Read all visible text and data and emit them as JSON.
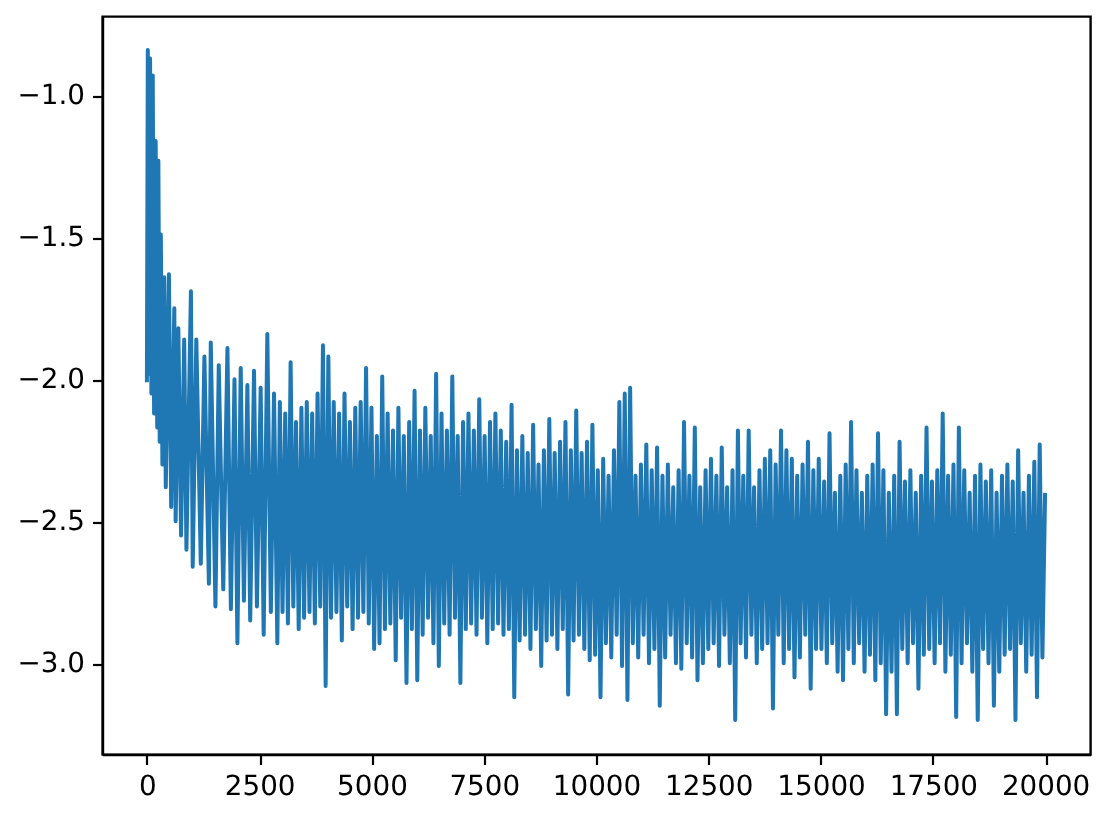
{
  "chart_data": {
    "type": "line",
    "x": [
      0,
      20,
      45,
      70,
      100,
      130,
      160,
      195,
      230,
      255,
      285,
      310,
      345,
      385,
      420,
      490,
      540,
      610,
      640,
      700,
      760,
      830,
      880,
      980,
      1020,
      1100,
      1200,
      1280,
      1380,
      1422,
      1526,
      1600,
      1700,
      1793,
      1870,
      1950,
      2015,
      2089,
      2160,
      2237,
      2300,
      2385,
      2450,
      2533,
      2600,
      2681,
      2760,
      2830,
      2904,
      2960,
      3020,
      3080,
      3140,
      3200,
      3260,
      3320,
      3380,
      3440,
      3500,
      3560,
      3620,
      3680,
      3740,
      3800,
      3860,
      3920,
      3980,
      4040,
      4100,
      4160,
      4220,
      4280,
      4340,
      4400,
      4460,
      4520,
      4580,
      4640,
      4700,
      4760,
      4820,
      4880,
      4940,
      5000,
      5060,
      5120,
      5180,
      5240,
      5300,
      5360,
      5420,
      5480,
      5540,
      5600,
      5660,
      5720,
      5780,
      5840,
      5900,
      5960,
      6020,
      6080,
      6140,
      6200,
      6260,
      6320,
      6380,
      6440,
      6500,
      6560,
      6620,
      6680,
      6740,
      6800,
      6860,
      6920,
      6980,
      7040,
      7100,
      7160,
      7220,
      7280,
      7340,
      7400,
      7460,
      7520,
      7580,
      7640,
      7700,
      7760,
      7820,
      7880,
      7940,
      8000,
      8060,
      8120,
      8180,
      8240,
      8300,
      8360,
      8420,
      8480,
      8540,
      8600,
      8660,
      8720,
      8780,
      8840,
      8900,
      8960,
      9020,
      9080,
      9140,
      9200,
      9260,
      9320,
      9380,
      9440,
      9500,
      9560,
      9620,
      9680,
      9740,
      9800,
      9860,
      9920,
      9980,
      10040,
      10100,
      10160,
      10220,
      10280,
      10340,
      10400,
      10460,
      10520,
      10580,
      10640,
      10700,
      10760,
      10820,
      10880,
      10940,
      11000,
      11060,
      11120,
      11180,
      11240,
      11300,
      11360,
      11420,
      11480,
      11540,
      11600,
      11660,
      11720,
      11780,
      11840,
      11900,
      11960,
      12020,
      12080,
      12140,
      12200,
      12260,
      12320,
      12380,
      12440,
      12500,
      12560,
      12620,
      12680,
      12740,
      12800,
      12860,
      12920,
      12980,
      13040,
      13100,
      13160,
      13220,
      13280,
      13340,
      13400,
      13460,
      13520,
      13580,
      13640,
      13700,
      13760,
      13820,
      13880,
      13940,
      14000,
      14060,
      14120,
      14180,
      14240,
      14300,
      14360,
      14420,
      14480,
      14540,
      14600,
      14660,
      14720,
      14780,
      14840,
      14900,
      14960,
      15020,
      15080,
      15140,
      15200,
      15260,
      15320,
      15380,
      15440,
      15500,
      15560,
      15620,
      15680,
      15740,
      15800,
      15860,
      15920,
      15980,
      16040,
      16100,
      16160,
      16220,
      16280,
      16340,
      16400,
      16460,
      16520,
      16580,
      16640,
      16700,
      16760,
      16820,
      16880,
      16940,
      17000,
      17060,
      17120,
      17180,
      17240,
      17300,
      17360,
      17420,
      17480,
      17540,
      17600,
      17660,
      17720,
      17780,
      17840,
      17900,
      17960,
      18020,
      18080,
      18140,
      18200,
      18260,
      18320,
      18380,
      18440,
      18500,
      18560,
      18620,
      18680,
      18740,
      18800,
      18860,
      18920,
      18980,
      19040,
      19100,
      19160,
      19220,
      19280,
      19340,
      19400,
      19460,
      19520,
      19580,
      19640,
      19700,
      19760,
      19820,
      19880,
      19940,
      20000
    ],
    "series": [
      {
        "color": "#1f77b4",
        "values": [
          -2.01,
          -0.84,
          -1.98,
          -0.87,
          -2.05,
          -0.93,
          -2.12,
          -1.16,
          -2.17,
          -1.23,
          -2.22,
          -1.49,
          -2.3,
          -1.64,
          -2.38,
          -1.63,
          -2.45,
          -1.75,
          -2.5,
          -1.82,
          -2.55,
          -1.86,
          -2.6,
          -1.69,
          -2.66,
          -1.86,
          -2.65,
          -1.92,
          -2.72,
          -1.87,
          -2.8,
          -1.95,
          -2.74,
          -1.89,
          -2.81,
          -2.0,
          -2.93,
          -1.96,
          -2.78,
          -2.02,
          -2.85,
          -1.97,
          -2.8,
          -2.03,
          -2.9,
          -1.84,
          -2.82,
          -2.05,
          -2.93,
          -2.08,
          -2.82,
          -2.12,
          -2.86,
          -1.94,
          -2.8,
          -2.15,
          -2.88,
          -2.1,
          -2.84,
          -2.08,
          -2.82,
          -2.12,
          -2.86,
          -2.05,
          -2.8,
          -1.88,
          -3.08,
          -1.92,
          -2.84,
          -2.08,
          -2.82,
          -2.12,
          -2.92,
          -2.05,
          -2.8,
          -2.15,
          -2.88,
          -2.1,
          -2.84,
          -2.08,
          -2.82,
          -1.96,
          -2.86,
          -2.1,
          -2.95,
          -2.2,
          -2.93,
          -1.99,
          -2.88,
          -2.12,
          -2.86,
          -2.18,
          -2.99,
          -2.1,
          -2.84,
          -2.2,
          -3.07,
          -2.15,
          -2.88,
          -2.04,
          -3.06,
          -2.18,
          -2.9,
          -2.1,
          -2.84,
          -2.2,
          -2.93,
          -1.98,
          -3.01,
          -2.12,
          -2.86,
          -2.18,
          -2.9,
          -1.99,
          -2.84,
          -2.2,
          -3.07,
          -2.15,
          -2.88,
          -2.12,
          -2.86,
          -2.18,
          -2.9,
          -2.07,
          -2.84,
          -2.2,
          -2.93,
          -2.15,
          -2.88,
          -2.12,
          -2.86,
          -2.18,
          -2.9,
          -2.22,
          -2.88,
          -2.09,
          -3.12,
          -2.25,
          -2.92,
          -2.2,
          -2.9,
          -2.26,
          -2.95,
          -2.16,
          -2.88,
          -2.3,
          -3.01,
          -2.25,
          -2.92,
          -2.14,
          -2.9,
          -2.26,
          -2.95,
          -2.22,
          -2.88,
          -2.15,
          -3.11,
          -2.25,
          -2.92,
          -2.11,
          -2.9,
          -2.26,
          -2.95,
          -2.22,
          -2.99,
          -2.16,
          -2.97,
          -2.32,
          -3.12,
          -2.28,
          -2.93,
          -2.34,
          -2.98,
          -2.25,
          -2.9,
          -2.08,
          -3.01,
          -2.05,
          -3.13,
          -2.03,
          -2.93,
          -2.34,
          -2.98,
          -2.3,
          -2.9,
          -2.23,
          -3.0,
          -2.32,
          -2.95,
          -2.24,
          -3.15,
          -2.34,
          -2.98,
          -2.3,
          -2.9,
          -2.38,
          -3.0,
          -2.32,
          -3.02,
          -2.15,
          -2.93,
          -2.34,
          -2.98,
          -2.17,
          -3.06,
          -2.38,
          -3.0,
          -2.32,
          -2.95,
          -2.28,
          -2.93,
          -2.34,
          -3.01,
          -2.24,
          -2.9,
          -2.38,
          -3.0,
          -2.32,
          -3.2,
          -2.18,
          -2.93,
          -2.34,
          -2.98,
          -2.18,
          -2.9,
          -2.38,
          -3.0,
          -2.32,
          -2.95,
          -2.28,
          -2.93,
          -2.25,
          -3.16,
          -2.3,
          -2.9,
          -2.18,
          -3.0,
          -2.25,
          -2.95,
          -2.28,
          -3.05,
          -2.34,
          -2.98,
          -2.3,
          -2.9,
          -2.22,
          -3.09,
          -2.32,
          -2.95,
          -2.28,
          -2.95,
          -2.36,
          -3.0,
          -2.19,
          -2.93,
          -2.4,
          -3.03,
          -2.34,
          -3.06,
          -2.3,
          -2.95,
          -2.15,
          -3.0,
          -2.32,
          -2.93,
          -2.4,
          -3.03,
          -2.34,
          -2.97,
          -2.3,
          -3.06,
          -2.19,
          -3.0,
          -2.32,
          -3.18,
          -2.4,
          -3.03,
          -2.34,
          -3.18,
          -2.22,
          -2.95,
          -2.36,
          -3.0,
          -2.32,
          -2.93,
          -2.4,
          -3.09,
          -2.34,
          -2.97,
          -2.17,
          -2.95,
          -2.36,
          -3.0,
          -2.32,
          -2.93,
          -2.12,
          -3.03,
          -2.34,
          -2.97,
          -2.3,
          -3.19,
          -2.17,
          -3.0,
          -2.32,
          -2.93,
          -2.4,
          -3.03,
          -2.34,
          -3.2,
          -2.3,
          -2.95,
          -2.36,
          -3.0,
          -2.32,
          -3.15,
          -2.4,
          -3.03,
          -2.34,
          -2.97,
          -2.3,
          -2.95,
          -2.36,
          -3.2,
          -2.25,
          -2.93,
          -2.4,
          -3.03,
          -2.34,
          -2.97,
          -2.29,
          -3.12,
          -2.23,
          -2.98,
          -2.4
        ]
      }
    ],
    "xlim": [
      -1000,
      21000
    ],
    "ylim": [
      -3.32,
      -0.72
    ],
    "xticks": [
      0,
      2500,
      5000,
      7500,
      10000,
      12500,
      15000,
      17500,
      20000
    ],
    "yticks": [
      {
        "value": -3,
        "label": "−3.0"
      },
      {
        "value": -2.5,
        "label": "−2.5"
      },
      {
        "value": -2,
        "label": "−2.0"
      },
      {
        "value": -1.5,
        "label": "−1.5"
      },
      {
        "value": -1,
        "label": "−1.0"
      }
    ],
    "line_style": "solid"
  }
}
